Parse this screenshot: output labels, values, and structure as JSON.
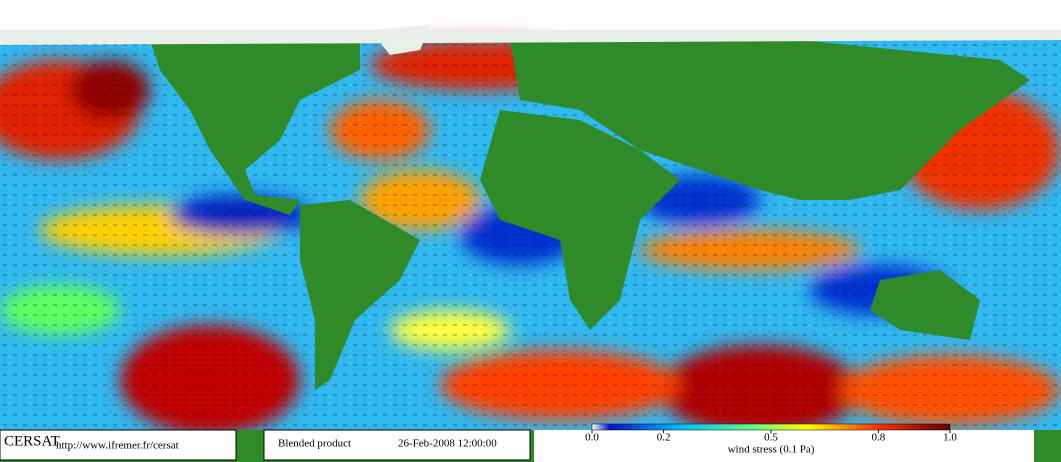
{
  "map": {
    "brand": "CERSAT",
    "url": "http://www.ifremer.fr/cersat",
    "product": "Blended product",
    "date": "26-Feb-2008 12:00:00"
  },
  "colorbar": {
    "label": "wind stress (0.1 Pa)",
    "lim": [
      0,
      1
    ],
    "ticks": [
      {
        "value": 0,
        "label": "0.0"
      },
      0.2,
      0.5,
      0.8,
      {
        "value": 1,
        "label": "1.0"
      }
    ]
  }
}
